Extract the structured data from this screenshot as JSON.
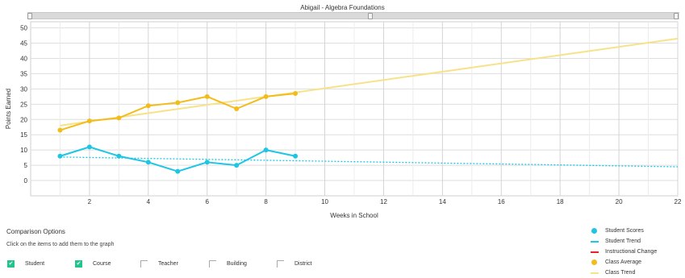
{
  "chart_title": "Abigail - Algebra Foundations",
  "colors": {
    "student": "#1ec6e3",
    "student_trend": "#1ec6e3",
    "instructional_change": "#e8202a",
    "class_average": "#f2bd1a",
    "class_trend": "#f7e28a",
    "grid": "#dedede",
    "scrollbar": "#d9d9d9",
    "checkbox_on": "#21c48a"
  },
  "chart_data": {
    "type": "line",
    "title": "Abigail - Algebra Foundations",
    "xlabel": "Weeks in School",
    "ylabel": "Points Earned",
    "xlim": [
      0,
      22
    ],
    "ylim": [
      -5,
      52
    ],
    "xticks": [
      2,
      4,
      6,
      8,
      10,
      12,
      14,
      16,
      18,
      20,
      22
    ],
    "yticks": [
      0,
      5,
      10,
      15,
      20,
      25,
      30,
      35,
      40,
      45,
      50
    ],
    "grid": true,
    "legend_position": "bottom-right",
    "series": [
      {
        "name": "Student Scores",
        "kind": "line-markers",
        "x": [
          1,
          2,
          3,
          4,
          5,
          6,
          7,
          8,
          9
        ],
        "y": [
          8,
          11,
          8,
          6,
          3,
          6,
          5,
          10,
          8
        ]
      },
      {
        "name": "Student Trend",
        "kind": "dotted-line",
        "x": [
          1,
          22
        ],
        "y": [
          7.7,
          4.5
        ]
      },
      {
        "name": "Class Average",
        "kind": "line-markers",
        "x": [
          1,
          2,
          3,
          4,
          5,
          6,
          7,
          8,
          9
        ],
        "y": [
          16.5,
          19.5,
          20.5,
          24.5,
          25.5,
          27.5,
          23.5,
          27.5,
          28.5
        ]
      },
      {
        "name": "Class Trend",
        "kind": "line",
        "x": [
          1,
          22
        ],
        "y": [
          18,
          46.5
        ]
      }
    ]
  },
  "comparison": {
    "title": "Comparison Options",
    "hint": "Click on the items to add them to the graph",
    "options": [
      {
        "label": "Student",
        "checked": true
      },
      {
        "label": "Course",
        "checked": true
      },
      {
        "label": "Teacher",
        "checked": false
      },
      {
        "label": "Building",
        "checked": false
      },
      {
        "label": "District",
        "checked": false
      }
    ]
  },
  "legend": [
    {
      "label": "Student Scores",
      "symbol": "dot",
      "color": "#1ec6e3"
    },
    {
      "label": "Student Trend",
      "symbol": "line",
      "color": "#1ec6e3"
    },
    {
      "label": "Instructional Change",
      "symbol": "line",
      "color": "#e8202a"
    },
    {
      "label": "Class Average",
      "symbol": "dot",
      "color": "#f2bd1a"
    },
    {
      "label": "Class Trend",
      "symbol": "line",
      "color": "#f7e28a"
    }
  ],
  "icons": {
    "checked": "✔"
  }
}
